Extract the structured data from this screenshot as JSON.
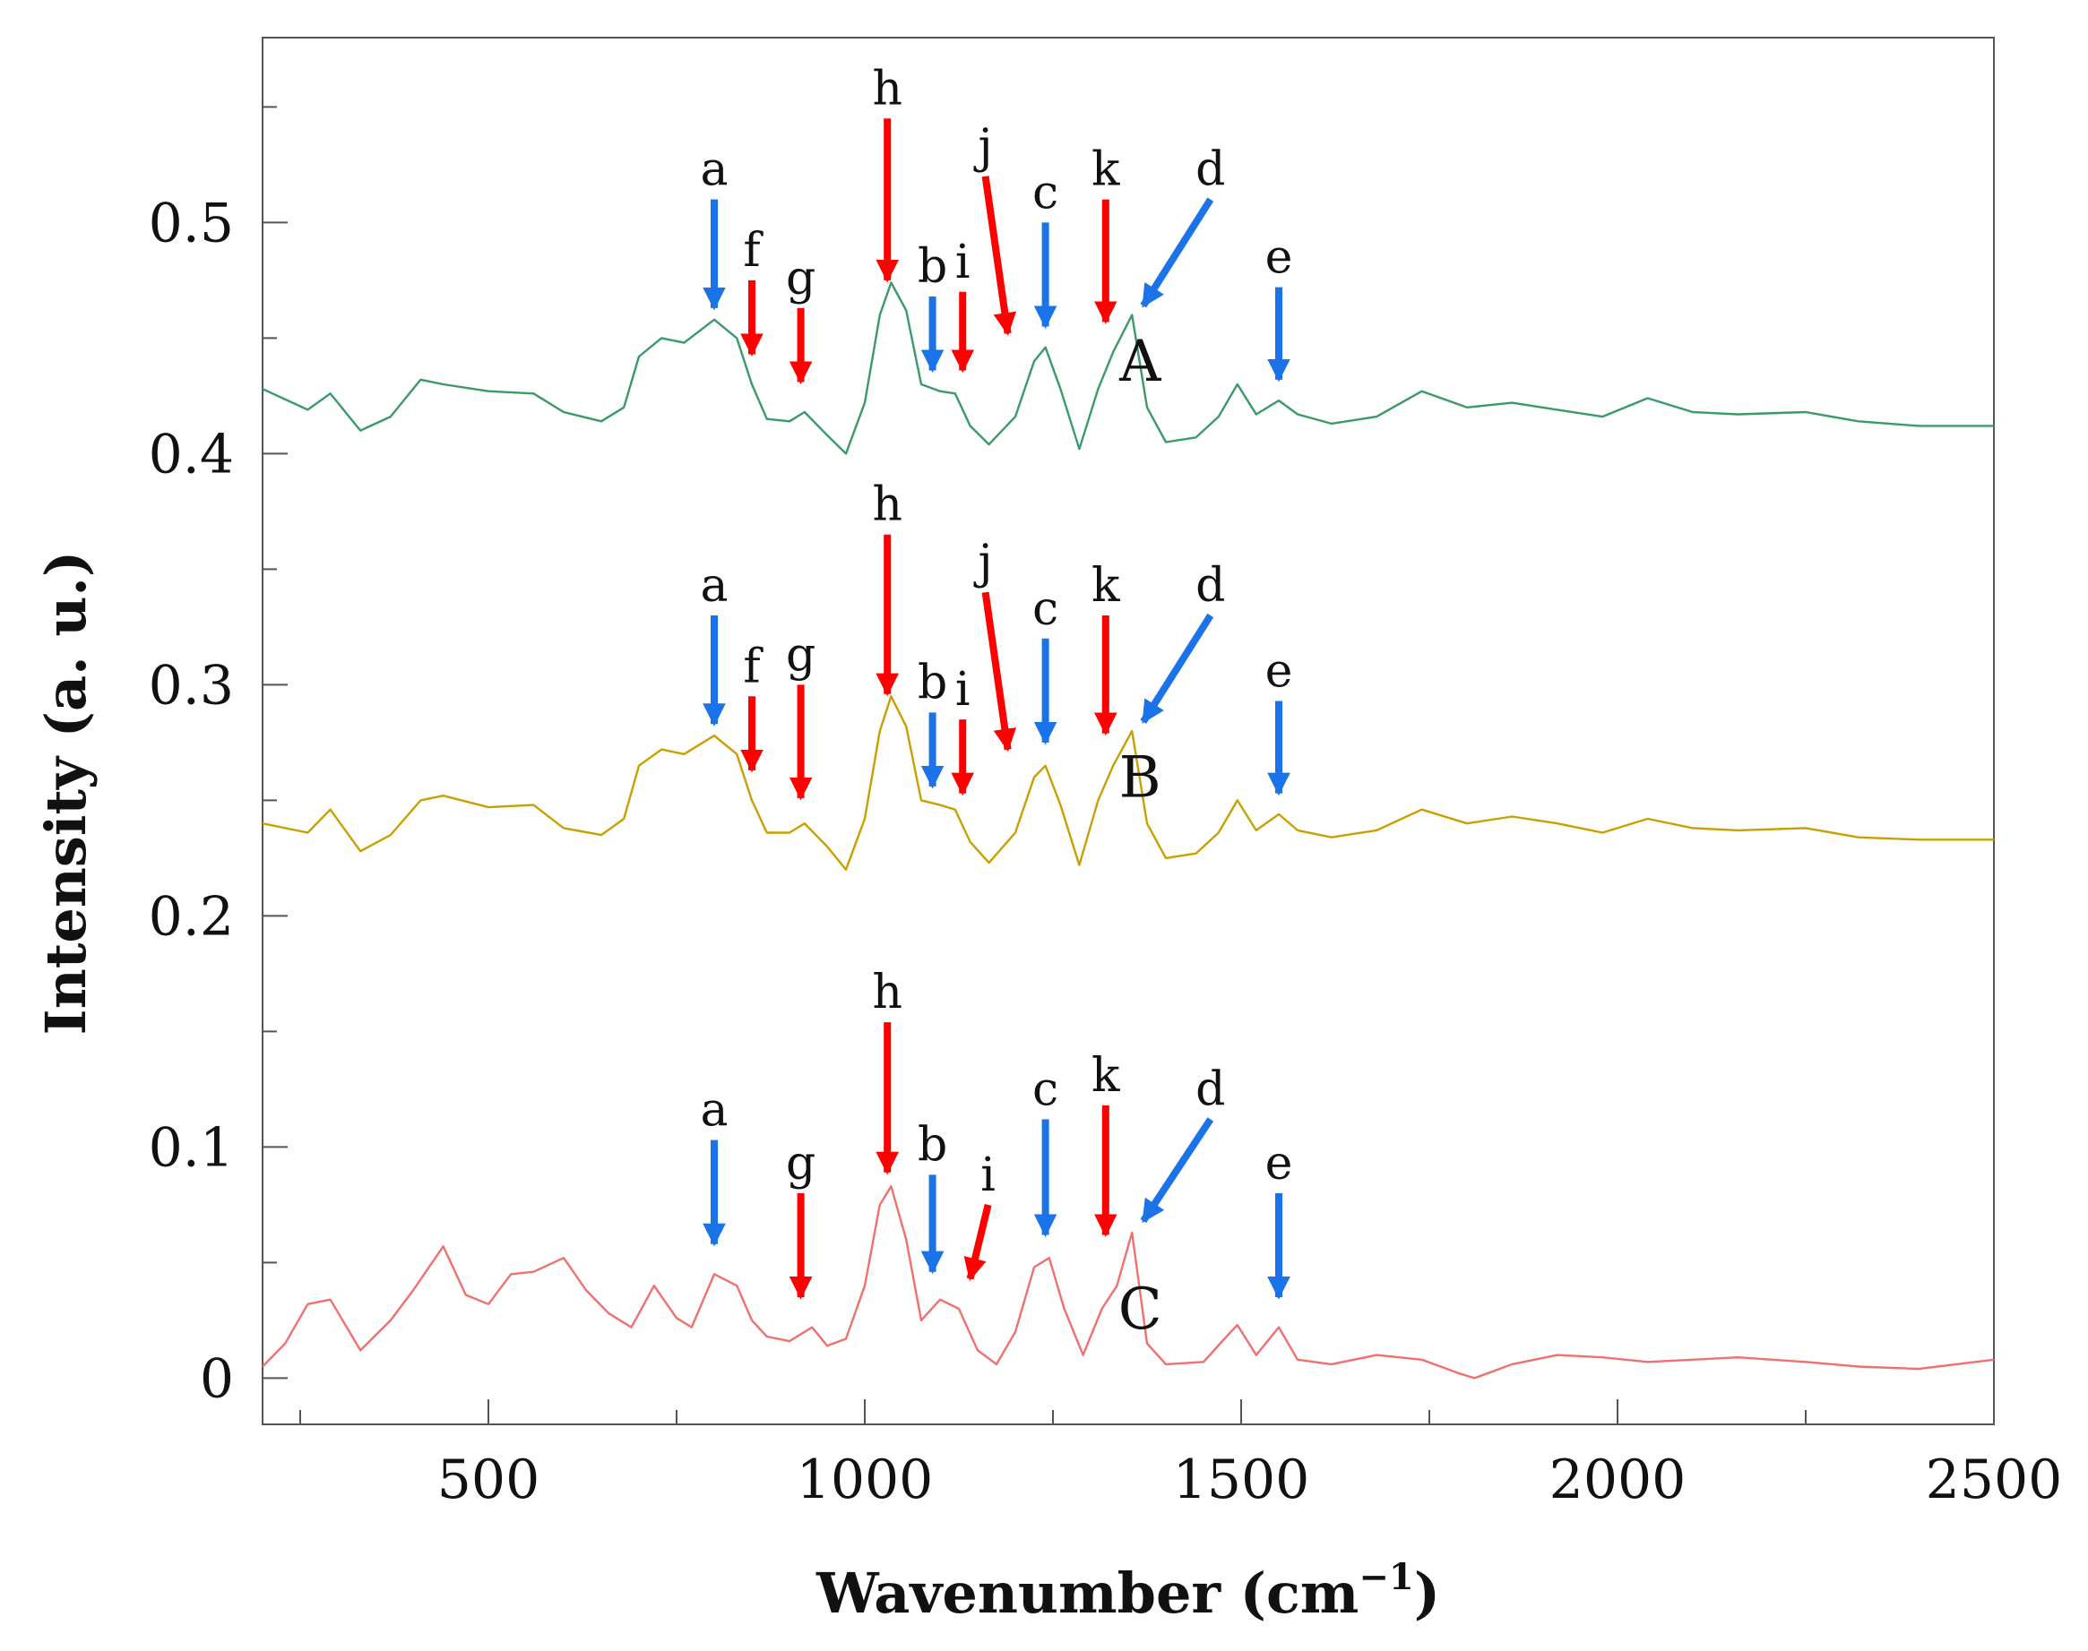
{
  "chart_data": {
    "type": "line",
    "title": "",
    "xlabel": "Wavenumber (cm",
    "xlabel_sup": "−1",
    "xlabel_close": ")",
    "ylabel": "Intensity (a. u.)",
    "xlim": [
      200,
      2500
    ],
    "ylim": [
      -0.02,
      0.58
    ],
    "x_ticks": [
      500,
      1000,
      1500,
      2000,
      2500
    ],
    "x_tick_labels": [
      "500",
      "1000",
      "1500",
      "2000",
      "2500"
    ],
    "x_minor_ticks": [
      250,
      750,
      1250,
      1750,
      2250
    ],
    "y_ticks": [
      0,
      0.1,
      0.2,
      0.3,
      0.4,
      0.5
    ],
    "y_tick_labels": [
      "0",
      "0.1",
      "0.2",
      "0.3",
      "0.4",
      "0.5"
    ],
    "y_minor_ticks": [
      0.05,
      0.15,
      0.25,
      0.35,
      0.45,
      0.55
    ],
    "colors": {
      "blue_arrow": "#1a73e8",
      "red_arrow": "#ff0000"
    },
    "series": [
      {
        "name": "A",
        "color": "#3a9a6a",
        "offset": 0.41,
        "label_pos": [
          1330,
          0.44
        ],
        "points": [
          [
            200,
            0.018
          ],
          [
            260,
            0.009
          ],
          [
            290,
            0.016
          ],
          [
            330,
            0.0
          ],
          [
            370,
            0.006
          ],
          [
            410,
            0.022
          ],
          [
            440,
            0.02
          ],
          [
            500,
            0.017
          ],
          [
            560,
            0.016
          ],
          [
            600,
            0.008
          ],
          [
            650,
            0.004
          ],
          [
            680,
            0.01
          ],
          [
            700,
            0.032
          ],
          [
            730,
            0.04
          ],
          [
            760,
            0.038
          ],
          [
            800,
            0.048
          ],
          [
            830,
            0.04
          ],
          [
            850,
            0.02
          ],
          [
            870,
            0.005
          ],
          [
            900,
            0.004
          ],
          [
            920,
            0.008
          ],
          [
            950,
            -0.002
          ],
          [
            975,
            -0.01
          ],
          [
            1000,
            0.012
          ],
          [
            1020,
            0.05
          ],
          [
            1035,
            0.064
          ],
          [
            1055,
            0.052
          ],
          [
            1075,
            0.02
          ],
          [
            1100,
            0.017
          ],
          [
            1120,
            0.016
          ],
          [
            1140,
            0.002
          ],
          [
            1165,
            -0.006
          ],
          [
            1200,
            0.006
          ],
          [
            1225,
            0.03
          ],
          [
            1240,
            0.036
          ],
          [
            1260,
            0.018
          ],
          [
            1285,
            -0.008
          ],
          [
            1310,
            0.018
          ],
          [
            1330,
            0.034
          ],
          [
            1355,
            0.05
          ],
          [
            1375,
            0.01
          ],
          [
            1400,
            -0.005
          ],
          [
            1440,
            -0.003
          ],
          [
            1470,
            0.006
          ],
          [
            1495,
            0.02
          ],
          [
            1520,
            0.007
          ],
          [
            1550,
            0.013
          ],
          [
            1575,
            0.007
          ],
          [
            1620,
            0.003
          ],
          [
            1680,
            0.006
          ],
          [
            1740,
            0.017
          ],
          [
            1800,
            0.01
          ],
          [
            1860,
            0.012
          ],
          [
            1920,
            0.009
          ],
          [
            1980,
            0.006
          ],
          [
            2040,
            0.014
          ],
          [
            2100,
            0.008
          ],
          [
            2160,
            0.007
          ],
          [
            2250,
            0.008
          ],
          [
            2320,
            0.004
          ],
          [
            2400,
            0.002
          ],
          [
            2500,
            0.002
          ]
        ]
      },
      {
        "name": "B",
        "color": "#c9a000",
        "offset": 0.23,
        "label_pos": [
          1330,
          0.26
        ],
        "points": [
          [
            200,
            0.01
          ],
          [
            260,
            0.006
          ],
          [
            290,
            0.016
          ],
          [
            330,
            -0.002
          ],
          [
            370,
            0.005
          ],
          [
            410,
            0.02
          ],
          [
            440,
            0.022
          ],
          [
            500,
            0.017
          ],
          [
            560,
            0.018
          ],
          [
            600,
            0.008
          ],
          [
            650,
            0.005
          ],
          [
            680,
            0.012
          ],
          [
            700,
            0.035
          ],
          [
            730,
            0.042
          ],
          [
            760,
            0.04
          ],
          [
            800,
            0.048
          ],
          [
            830,
            0.04
          ],
          [
            850,
            0.02
          ],
          [
            870,
            0.006
          ],
          [
            900,
            0.006
          ],
          [
            920,
            0.01
          ],
          [
            950,
            0.0
          ],
          [
            975,
            -0.01
          ],
          [
            1000,
            0.012
          ],
          [
            1020,
            0.05
          ],
          [
            1035,
            0.065
          ],
          [
            1055,
            0.052
          ],
          [
            1075,
            0.02
          ],
          [
            1100,
            0.018
          ],
          [
            1120,
            0.016
          ],
          [
            1140,
            0.002
          ],
          [
            1165,
            -0.007
          ],
          [
            1200,
            0.006
          ],
          [
            1225,
            0.03
          ],
          [
            1240,
            0.035
          ],
          [
            1260,
            0.018
          ],
          [
            1285,
            -0.008
          ],
          [
            1310,
            0.02
          ],
          [
            1330,
            0.035
          ],
          [
            1355,
            0.05
          ],
          [
            1375,
            0.01
          ],
          [
            1400,
            -0.005
          ],
          [
            1440,
            -0.003
          ],
          [
            1470,
            0.006
          ],
          [
            1495,
            0.02
          ],
          [
            1520,
            0.007
          ],
          [
            1550,
            0.014
          ],
          [
            1575,
            0.007
          ],
          [
            1620,
            0.004
          ],
          [
            1680,
            0.007
          ],
          [
            1740,
            0.016
          ],
          [
            1800,
            0.01
          ],
          [
            1860,
            0.013
          ],
          [
            1920,
            0.01
          ],
          [
            1980,
            0.006
          ],
          [
            2040,
            0.012
          ],
          [
            2100,
            0.008
          ],
          [
            2160,
            0.007
          ],
          [
            2250,
            0.008
          ],
          [
            2320,
            0.004
          ],
          [
            2400,
            0.003
          ],
          [
            2500,
            0.003
          ]
        ]
      },
      {
        "name": "C",
        "color": "#f07070",
        "offset": 0.0,
        "label_pos": [
          1330,
          0.03
        ],
        "points": [
          [
            200,
            0.005
          ],
          [
            230,
            0.015
          ],
          [
            260,
            0.032
          ],
          [
            290,
            0.034
          ],
          [
            330,
            0.012
          ],
          [
            370,
            0.025
          ],
          [
            400,
            0.038
          ],
          [
            440,
            0.057
          ],
          [
            470,
            0.036
          ],
          [
            500,
            0.032
          ],
          [
            530,
            0.045
          ],
          [
            560,
            0.046
          ],
          [
            600,
            0.052
          ],
          [
            630,
            0.038
          ],
          [
            660,
            0.028
          ],
          [
            690,
            0.022
          ],
          [
            720,
            0.04
          ],
          [
            750,
            0.026
          ],
          [
            770,
            0.022
          ],
          [
            800,
            0.045
          ],
          [
            830,
            0.04
          ],
          [
            850,
            0.025
          ],
          [
            870,
            0.018
          ],
          [
            900,
            0.016
          ],
          [
            930,
            0.022
          ],
          [
            950,
            0.014
          ],
          [
            975,
            0.017
          ],
          [
            1000,
            0.04
          ],
          [
            1020,
            0.075
          ],
          [
            1035,
            0.083
          ],
          [
            1055,
            0.06
          ],
          [
            1075,
            0.025
          ],
          [
            1100,
            0.034
          ],
          [
            1125,
            0.03
          ],
          [
            1150,
            0.012
          ],
          [
            1175,
            0.006
          ],
          [
            1200,
            0.02
          ],
          [
            1225,
            0.048
          ],
          [
            1245,
            0.052
          ],
          [
            1265,
            0.03
          ],
          [
            1290,
            0.01
          ],
          [
            1315,
            0.03
          ],
          [
            1335,
            0.04
          ],
          [
            1355,
            0.063
          ],
          [
            1375,
            0.015
          ],
          [
            1400,
            0.006
          ],
          [
            1450,
            0.007
          ],
          [
            1475,
            0.016
          ],
          [
            1495,
            0.023
          ],
          [
            1520,
            0.01
          ],
          [
            1550,
            0.022
          ],
          [
            1575,
            0.008
          ],
          [
            1620,
            0.006
          ],
          [
            1680,
            0.01
          ],
          [
            1740,
            0.008
          ],
          [
            1790,
            0.002
          ],
          [
            1810,
            0.0
          ],
          [
            1860,
            0.006
          ],
          [
            1920,
            0.01
          ],
          [
            1980,
            0.009
          ],
          [
            2040,
            0.007
          ],
          [
            2100,
            0.008
          ],
          [
            2160,
            0.009
          ],
          [
            2250,
            0.007
          ],
          [
            2320,
            0.005
          ],
          [
            2400,
            0.004
          ],
          [
            2500,
            0.008
          ]
        ]
      }
    ],
    "annotations": [
      {
        "series": "A",
        "label": "a",
        "x": 800,
        "y_tip": 0.463,
        "y_tail": 0.51,
        "dx": 0,
        "color": "blue"
      },
      {
        "series": "A",
        "label": "f",
        "x": 850,
        "y_tip": 0.443,
        "y_tail": 0.475,
        "dx": 0,
        "color": "red"
      },
      {
        "series": "A",
        "label": "g",
        "x": 915,
        "y_tip": 0.431,
        "y_tail": 0.463,
        "dx": 0,
        "color": "red"
      },
      {
        "series": "A",
        "label": "h",
        "x": 1030,
        "y_tip": 0.475,
        "y_tail": 0.545,
        "dx": 0,
        "color": "red"
      },
      {
        "series": "A",
        "label": "b",
        "x": 1090,
        "y_tip": 0.436,
        "y_tail": 0.468,
        "dx": 0,
        "color": "blue"
      },
      {
        "series": "A",
        "label": "i",
        "x": 1130,
        "y_tip": 0.436,
        "y_tail": 0.47,
        "dx": 0,
        "color": "red"
      },
      {
        "series": "A",
        "label": "j",
        "x": 1190,
        "y_tip": 0.452,
        "y_tail": 0.52,
        "dx": -25,
        "color": "red"
      },
      {
        "series": "A",
        "label": "c",
        "x": 1240,
        "y_tip": 0.455,
        "y_tail": 0.5,
        "dx": 0,
        "color": "blue"
      },
      {
        "series": "A",
        "label": "k",
        "x": 1320,
        "y_tip": 0.457,
        "y_tail": 0.51,
        "dx": 0,
        "color": "red"
      },
      {
        "series": "A",
        "label": "d",
        "x": 1370,
        "y_tip": 0.464,
        "y_tail": 0.51,
        "dx": 75,
        "color": "blue"
      },
      {
        "series": "A",
        "label": "e",
        "x": 1550,
        "y_tip": 0.432,
        "y_tail": 0.472,
        "dx": 0,
        "color": "blue"
      },
      {
        "series": "B",
        "label": "a",
        "x": 800,
        "y_tip": 0.283,
        "y_tail": 0.33,
        "dx": 0,
        "color": "blue"
      },
      {
        "series": "B",
        "label": "f",
        "x": 850,
        "y_tip": 0.263,
        "y_tail": 0.295,
        "dx": 0,
        "color": "red"
      },
      {
        "series": "B",
        "label": "g",
        "x": 915,
        "y_tip": 0.251,
        "y_tail": 0.3,
        "dx": 0,
        "color": "red"
      },
      {
        "series": "B",
        "label": "h",
        "x": 1030,
        "y_tip": 0.296,
        "y_tail": 0.365,
        "dx": 0,
        "color": "red"
      },
      {
        "series": "B",
        "label": "b",
        "x": 1090,
        "y_tip": 0.256,
        "y_tail": 0.288,
        "dx": 0,
        "color": "blue"
      },
      {
        "series": "B",
        "label": "i",
        "x": 1130,
        "y_tip": 0.253,
        "y_tail": 0.285,
        "dx": 0,
        "color": "red"
      },
      {
        "series": "B",
        "label": "j",
        "x": 1190,
        "y_tip": 0.272,
        "y_tail": 0.34,
        "dx": -25,
        "color": "red"
      },
      {
        "series": "B",
        "label": "c",
        "x": 1240,
        "y_tip": 0.275,
        "y_tail": 0.32,
        "dx": 0,
        "color": "blue"
      },
      {
        "series": "B",
        "label": "k",
        "x": 1320,
        "y_tip": 0.279,
        "y_tail": 0.33,
        "dx": 0,
        "color": "red"
      },
      {
        "series": "B",
        "label": "d",
        "x": 1370,
        "y_tip": 0.284,
        "y_tail": 0.33,
        "dx": 75,
        "color": "blue"
      },
      {
        "series": "B",
        "label": "e",
        "x": 1550,
        "y_tip": 0.253,
        "y_tail": 0.293,
        "dx": 0,
        "color": "blue"
      },
      {
        "series": "C",
        "label": "a",
        "x": 800,
        "y_tip": 0.058,
        "y_tail": 0.103,
        "dx": 0,
        "color": "blue"
      },
      {
        "series": "C",
        "label": "g",
        "x": 915,
        "y_tip": 0.035,
        "y_tail": 0.08,
        "dx": 0,
        "color": "red"
      },
      {
        "series": "C",
        "label": "h",
        "x": 1030,
        "y_tip": 0.089,
        "y_tail": 0.154,
        "dx": 0,
        "color": "red"
      },
      {
        "series": "C",
        "label": "b",
        "x": 1090,
        "y_tip": 0.046,
        "y_tail": 0.088,
        "dx": 0,
        "color": "blue"
      },
      {
        "series": "C",
        "label": "i",
        "x": 1140,
        "y_tip": 0.043,
        "y_tail": 0.075,
        "dx": 20,
        "color": "red"
      },
      {
        "series": "C",
        "label": "c",
        "x": 1240,
        "y_tip": 0.062,
        "y_tail": 0.112,
        "dx": 0,
        "color": "blue"
      },
      {
        "series": "C",
        "label": "k",
        "x": 1320,
        "y_tip": 0.062,
        "y_tail": 0.118,
        "dx": 0,
        "color": "red"
      },
      {
        "series": "C",
        "label": "d",
        "x": 1370,
        "y_tip": 0.068,
        "y_tail": 0.112,
        "dx": 75,
        "color": "blue"
      },
      {
        "series": "C",
        "label": "e",
        "x": 1550,
        "y_tip": 0.035,
        "y_tail": 0.08,
        "dx": 0,
        "color": "blue"
      }
    ]
  }
}
